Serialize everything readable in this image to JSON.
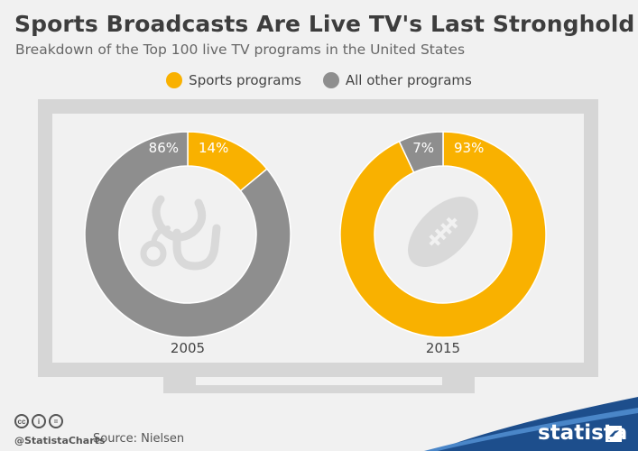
{
  "header": {
    "title": "Sports Broadcasts Are Live TV's Last Stronghold",
    "subtitle": "Breakdown of the Top 100 live TV programs in the United States"
  },
  "legend": [
    {
      "label": "Sports programs",
      "color": "#f9b100"
    },
    {
      "label": "All other programs",
      "color": "#8e8e8e"
    }
  ],
  "chart_data": [
    {
      "type": "pie",
      "donut": true,
      "title": "2005",
      "slices": [
        {
          "name": "Sports programs",
          "value": 14,
          "label": "14%",
          "color": "#f9b100"
        },
        {
          "name": "All other programs",
          "value": 86,
          "label": "86%",
          "color": "#8e8e8e"
        }
      ],
      "center_icon": "stethoscope-icon"
    },
    {
      "type": "pie",
      "donut": true,
      "title": "2015",
      "slices": [
        {
          "name": "Sports programs",
          "value": 93,
          "label": "93%",
          "color": "#f9b100"
        },
        {
          "name": "All other programs",
          "value": 7,
          "label": "7%",
          "color": "#8e8e8e"
        }
      ],
      "center_icon": "football-icon"
    }
  ],
  "footer": {
    "handle": "@StatistaCharts",
    "source": "Source: Nielsen",
    "brand": "statista",
    "cc_icons": [
      "cc",
      "by",
      "nd"
    ]
  }
}
